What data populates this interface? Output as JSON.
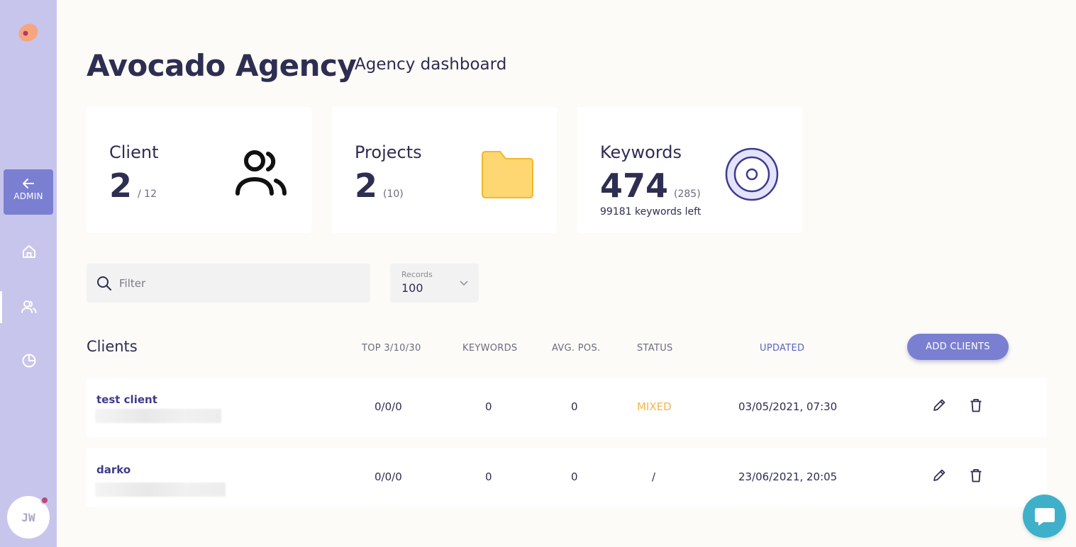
{
  "sidebar": {
    "admin_label": "ADMIN",
    "nav": [
      "home-icon",
      "users-icon",
      "pie-chart-icon"
    ],
    "avatar_initials": "JW",
    "colors": {
      "bg": "#c8c5ec",
      "admin_bg": "#7b7fd1"
    }
  },
  "header": {
    "title": "Avocado Agency",
    "subtitle": "Agency dashboard"
  },
  "cards": {
    "client": {
      "label": "Client",
      "value": "2",
      "sub": "/ 12",
      "icon": "users-icon"
    },
    "projects": {
      "label": "Projects",
      "value": "2",
      "sub": "(10)",
      "icon": "folder-icon"
    },
    "keywords": {
      "label": "Keywords",
      "value": "474",
      "sub": "(285)",
      "note": "99181 keywords left",
      "icon": "target-icon"
    }
  },
  "filter": {
    "placeholder": "Filter",
    "value": ""
  },
  "records": {
    "label": "Records",
    "value": "100"
  },
  "table": {
    "title": "Clients",
    "columns": {
      "top": "TOP 3/10/30",
      "keywords": "KEYWORDS",
      "avg_pos": "AVG. POS.",
      "status": "STATUS",
      "updated": "UPDATED"
    },
    "add_button": "ADD CLIENTS",
    "rows": [
      {
        "name": "test client",
        "top": "0/0/0",
        "keywords": "0",
        "avg_pos": "0",
        "status": "MIXED",
        "updated": "03/05/2021, 07:30"
      },
      {
        "name": "darko",
        "top": "0/0/0",
        "keywords": "0",
        "avg_pos": "0",
        "status": "/",
        "updated": "23/06/2021, 20:05"
      }
    ]
  },
  "colors": {
    "accent": "#7b7fd1",
    "status_mixed": "#f5b547",
    "chat": "#3fb0c9",
    "folder": "#ffd772"
  }
}
